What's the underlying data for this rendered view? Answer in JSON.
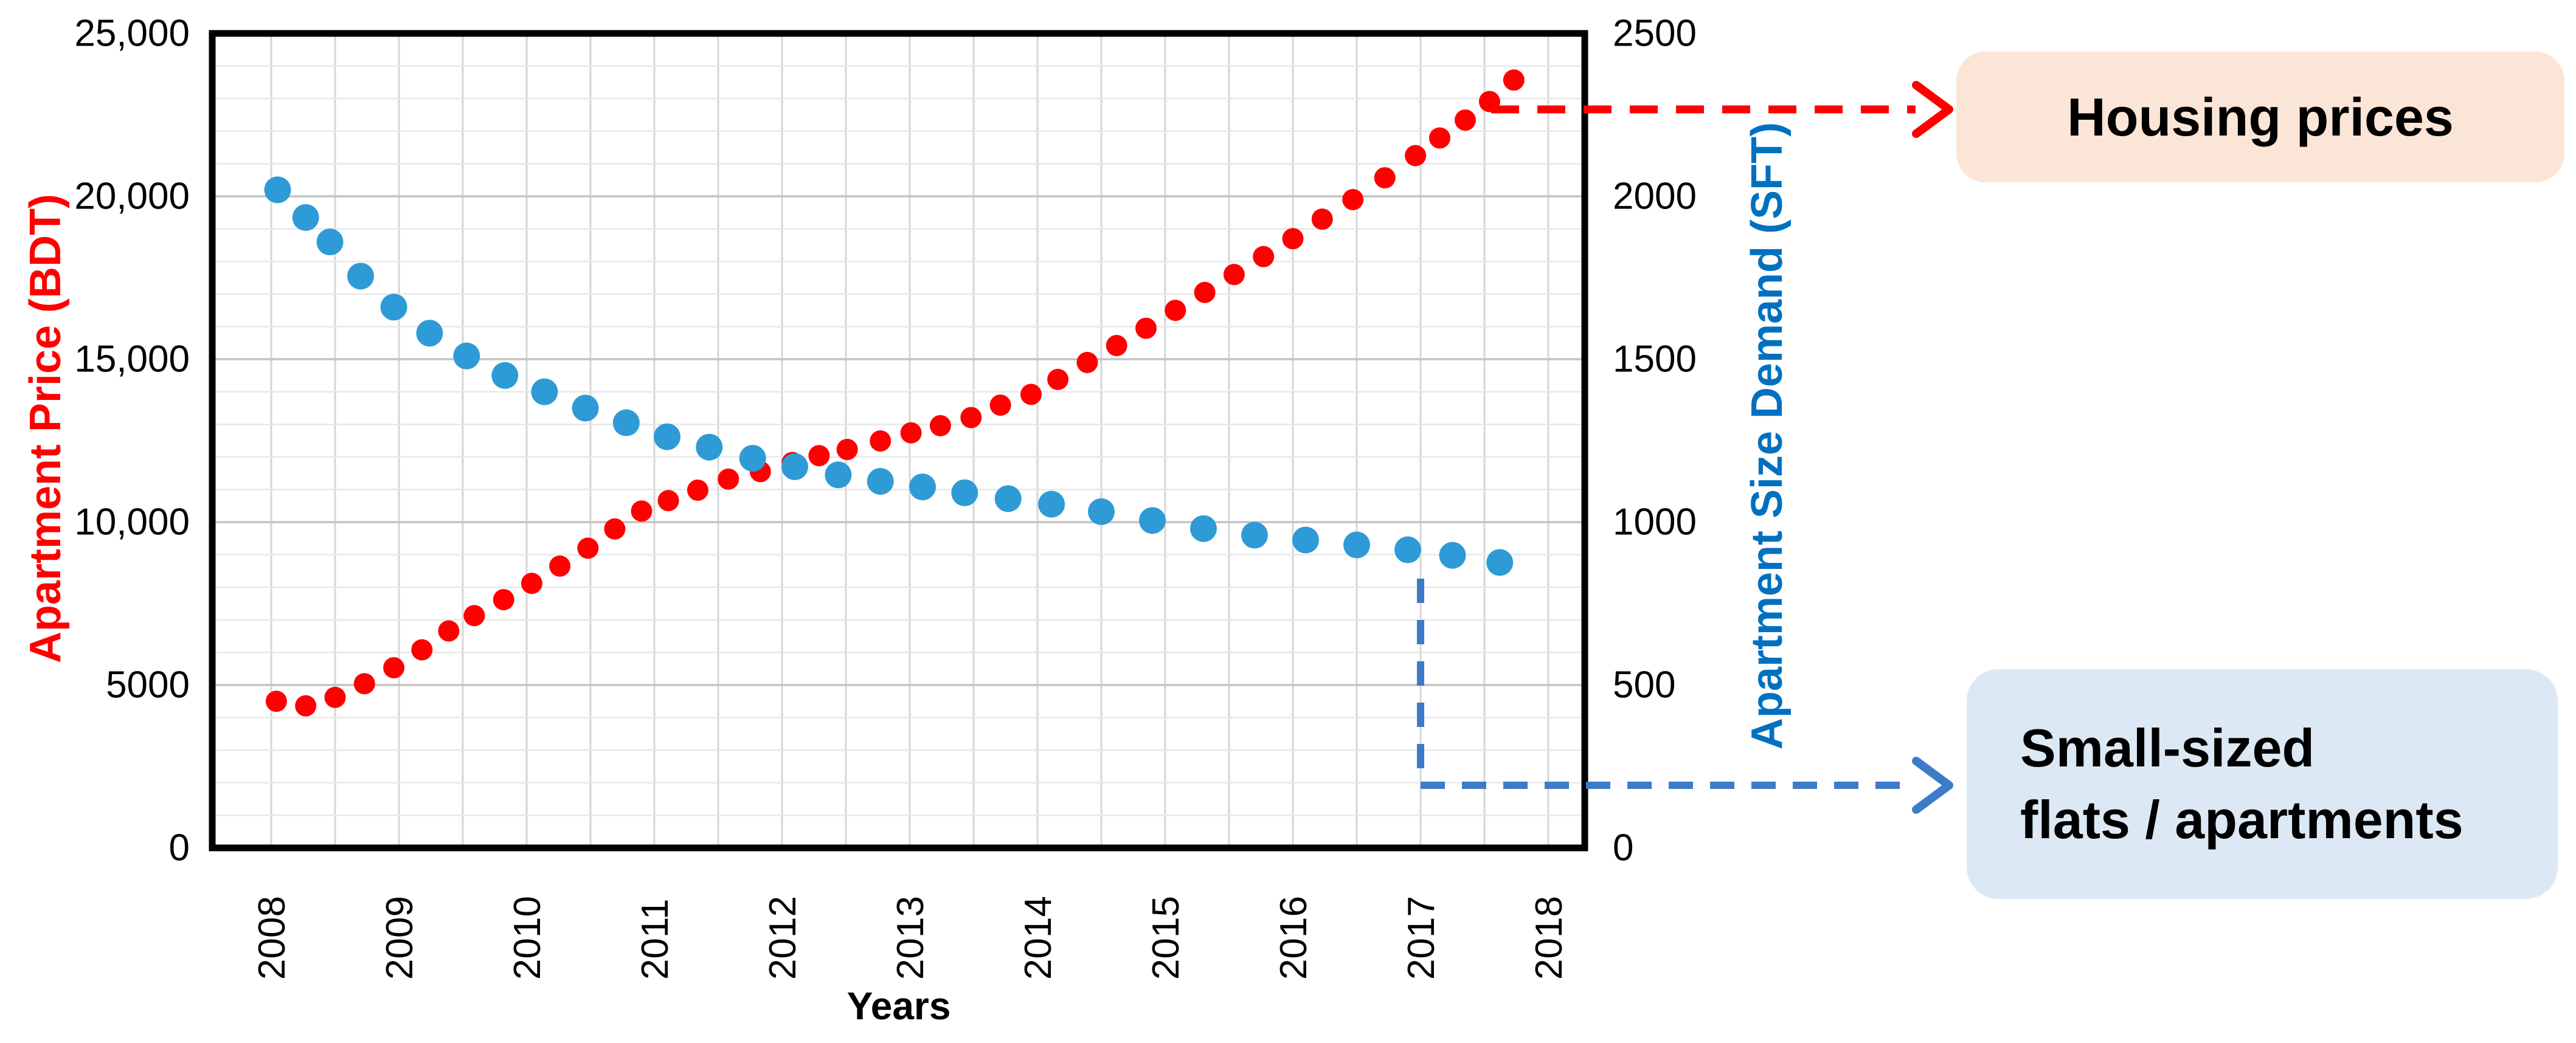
{
  "figure": {
    "left_axis": {
      "title": "Apartment Price (BDT)",
      "color": "#FF0000",
      "tick_labels": [
        "0",
        "5000",
        "10,000",
        "15,000",
        "20,000",
        "25,000"
      ],
      "min": 0,
      "max": 25000,
      "major_step": 5000,
      "minor_step": 1000
    },
    "right_axis": {
      "title": "Apartment Size Demand (SFT)",
      "color": "#0070C0",
      "tick_labels": [
        "0",
        "500",
        "1000",
        "1500",
        "2000",
        "2500"
      ],
      "min": 0,
      "max": 2500,
      "major_step": 500,
      "minor_step": 100
    },
    "x_axis": {
      "title": "Years",
      "labels": [
        "2008",
        "2009",
        "2010",
        "2011",
        "2012",
        "2013",
        "2014",
        "2015",
        "2016",
        "2017",
        "2018"
      ]
    },
    "annotations": [
      {
        "id": "housing-prices",
        "label": "Housing prices",
        "bg": "#FBE5D6",
        "arrow_color": "#FF0000",
        "arrow_style": "dashed"
      },
      {
        "id": "small-flats",
        "label_line1": "Small-sized",
        "label_line2": "flats / apartments",
        "bg": "#DCE9F5",
        "arrow_color": "#3D7BC8",
        "arrow_style": "dashed"
      }
    ]
  },
  "chart_data": {
    "type": "scatter",
    "title": "",
    "xlabel": "Years",
    "x_ticks": [
      2008,
      2009,
      2010,
      2011,
      2012,
      2013,
      2014,
      2015,
      2016,
      2017,
      2018
    ],
    "xlim": [
      2007.54,
      2018.26
    ],
    "left_ylim": [
      0,
      25000
    ],
    "right_ylim": [
      0,
      2500
    ],
    "grid": {
      "horizontal_minor": true,
      "horizontal_major": true,
      "vertical_step_years": 0.5
    },
    "legend": "none",
    "series": [
      {
        "name": "Apartment Price (BDT)",
        "axis": "left",
        "color": "#FE0000",
        "points": [
          [
            2008.04,
            4500
          ],
          [
            2008.27,
            4360
          ],
          [
            2008.5,
            4620
          ],
          [
            2008.73,
            5040
          ],
          [
            2008.96,
            5530
          ],
          [
            2009.18,
            6080
          ],
          [
            2009.39,
            6660
          ],
          [
            2009.59,
            7130
          ],
          [
            2009.82,
            7620
          ],
          [
            2010.04,
            8120
          ],
          [
            2010.26,
            8650
          ],
          [
            2010.48,
            9200
          ],
          [
            2010.69,
            9790
          ],
          [
            2010.9,
            10340
          ],
          [
            2011.11,
            10660
          ],
          [
            2011.34,
            10980
          ],
          [
            2011.58,
            11320
          ],
          [
            2011.83,
            11550
          ],
          [
            2012.08,
            11830
          ],
          [
            2012.29,
            12040
          ],
          [
            2012.51,
            12230
          ],
          [
            2012.77,
            12490
          ],
          [
            2013.01,
            12740
          ],
          [
            2013.24,
            12960
          ],
          [
            2013.48,
            13210
          ],
          [
            2013.71,
            13590
          ],
          [
            2013.95,
            13920
          ],
          [
            2014.16,
            14380
          ],
          [
            2014.39,
            14900
          ],
          [
            2014.62,
            15420
          ],
          [
            2014.85,
            15950
          ],
          [
            2015.08,
            16500
          ],
          [
            2015.31,
            17050
          ],
          [
            2015.54,
            17600
          ],
          [
            2015.77,
            18150
          ],
          [
            2016.0,
            18700
          ],
          [
            2016.23,
            19300
          ],
          [
            2016.47,
            19900
          ],
          [
            2016.72,
            20570
          ],
          [
            2016.96,
            21250
          ],
          [
            2017.15,
            21790
          ],
          [
            2017.35,
            22340
          ],
          [
            2017.54,
            22910
          ],
          [
            2017.73,
            23570
          ]
        ]
      },
      {
        "name": "Apartment Size Demand (SFT)",
        "axis": "right",
        "color": "#2E9BD6",
        "points": [
          [
            2008.05,
            2020
          ],
          [
            2008.27,
            1935
          ],
          [
            2008.46,
            1860
          ],
          [
            2008.7,
            1755
          ],
          [
            2008.96,
            1660
          ],
          [
            2009.24,
            1580
          ],
          [
            2009.53,
            1510
          ],
          [
            2009.83,
            1450
          ],
          [
            2010.14,
            1400
          ],
          [
            2010.46,
            1350
          ],
          [
            2010.78,
            1305
          ],
          [
            2011.1,
            1262
          ],
          [
            2011.43,
            1230
          ],
          [
            2011.77,
            1196
          ],
          [
            2012.1,
            1170
          ],
          [
            2012.44,
            1145
          ],
          [
            2012.77,
            1125
          ],
          [
            2013.1,
            1108
          ],
          [
            2013.43,
            1090
          ],
          [
            2013.77,
            1072
          ],
          [
            2014.11,
            1055
          ],
          [
            2014.5,
            1032
          ],
          [
            2014.9,
            1005
          ],
          [
            2015.3,
            980
          ],
          [
            2015.7,
            960
          ],
          [
            2016.1,
            945
          ],
          [
            2016.5,
            930
          ],
          [
            2016.9,
            915
          ],
          [
            2017.25,
            898
          ],
          [
            2017.62,
            876
          ]
        ]
      }
    ]
  }
}
